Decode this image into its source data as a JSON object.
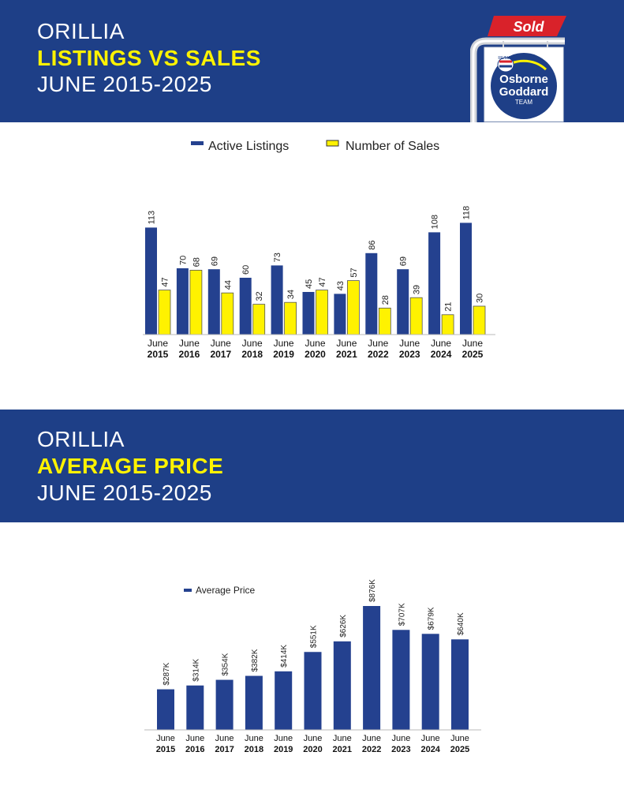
{
  "section1": {
    "line1": "ORILLIA",
    "line2": "LISTINGS VS SALES",
    "line3": "JUNE 2015-2025"
  },
  "section2": {
    "line1": "ORILLIA",
    "line2": "AVERAGE PRICE",
    "line3": "JUNE 2015-2025"
  },
  "logo": {
    "sold_text": "Sold",
    "brand_small": "RE/MAX",
    "name_line1": "Osborne",
    "name_line2": "Goddard",
    "name_line3": "TEAM"
  },
  "colors": {
    "navy": "#1e3f87",
    "yellow": "#fff200",
    "sold_red": "#d9222a"
  },
  "chart_data": [
    {
      "type": "bar",
      "categories": [
        [
          "June",
          "2015"
        ],
        [
          "June",
          "2016"
        ],
        [
          "June",
          "2017"
        ],
        [
          "June",
          "2018"
        ],
        [
          "June",
          "2019"
        ],
        [
          "June",
          "2020"
        ],
        [
          "June",
          "2021"
        ],
        [
          "June",
          "2022"
        ],
        [
          "June",
          "2023"
        ],
        [
          "June",
          "2024"
        ],
        [
          "June",
          "2025"
        ]
      ],
      "series": [
        {
          "name": "Active Listings",
          "color": "#24418f",
          "values": [
            113,
            70,
            69,
            60,
            73,
            45,
            43,
            86,
            69,
            108,
            118
          ]
        },
        {
          "name": "Number of Sales",
          "color": "#fff200",
          "values": [
            47,
            68,
            44,
            32,
            34,
            47,
            57,
            28,
            39,
            21,
            30
          ]
        }
      ],
      "value_labels": [
        [
          "113",
          "70",
          "69",
          "60",
          "73",
          "45",
          "43",
          "86",
          "69",
          "108",
          "118"
        ],
        [
          "47",
          "68",
          "44",
          "32",
          "34",
          "47",
          "57",
          "28",
          "39",
          "21",
          "30"
        ]
      ],
      "ylim": [
        0,
        125
      ],
      "legend": "top-center",
      "grid": false
    },
    {
      "type": "bar",
      "categories": [
        [
          "June",
          "2015"
        ],
        [
          "June",
          "2016"
        ],
        [
          "June",
          "2017"
        ],
        [
          "June",
          "2018"
        ],
        [
          "June",
          "2019"
        ],
        [
          "June",
          "2020"
        ],
        [
          "June",
          "2021"
        ],
        [
          "June",
          "2022"
        ],
        [
          "June",
          "2023"
        ],
        [
          "June",
          "2024"
        ],
        [
          "June",
          "2025"
        ]
      ],
      "series": [
        {
          "name": "Average Price",
          "color": "#24418f",
          "values": [
            287,
            314,
            354,
            382,
            414,
            551,
            626,
            876,
            707,
            679,
            640
          ]
        }
      ],
      "value_labels": [
        [
          "$287K",
          "$314K",
          "$354K",
          "$382K",
          "$414K",
          "$551K",
          "$626K",
          "$876K",
          "$707K",
          "$679K",
          "$640K"
        ]
      ],
      "ylim": [
        0,
        876
      ],
      "legend": "top-left",
      "grid": false
    }
  ]
}
